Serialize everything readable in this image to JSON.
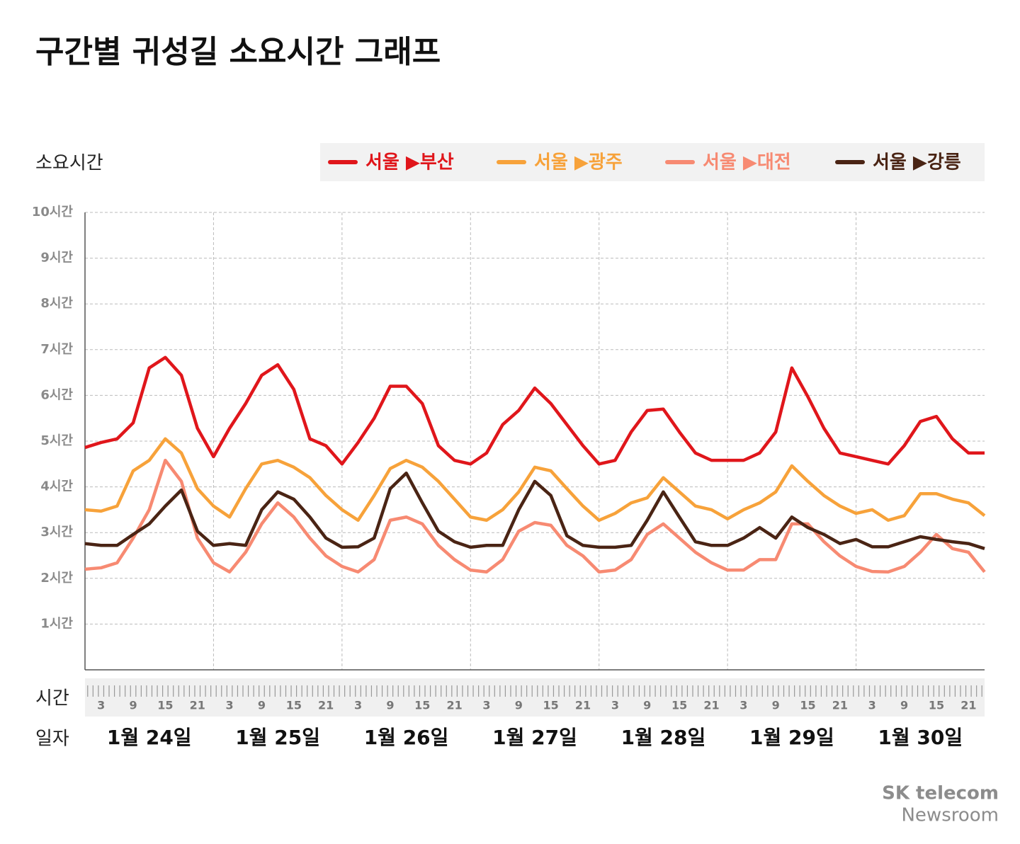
{
  "chart_data": {
    "type": "line",
    "title": "구간별 귀성길 소요시간 그래프",
    "y_label": "소요시간",
    "x_label_hour": "시간",
    "x_label_day": "일자",
    "brand": [
      "SK telecom",
      "Newsroom"
    ],
    "xlim": [
      0,
      168
    ],
    "ylim": [
      0,
      10
    ],
    "yticks": [
      {
        "value": 1,
        "label": "1시간"
      },
      {
        "value": 2,
        "label": "2시간"
      },
      {
        "value": 3,
        "label": "3시간"
      },
      {
        "value": 4,
        "label": "4시간"
      },
      {
        "value": 5,
        "label": "5시간"
      },
      {
        "value": 6,
        "label": "6시간"
      },
      {
        "value": 7,
        "label": "7시간"
      },
      {
        "value": 8,
        "label": "8시간"
      },
      {
        "value": 9,
        "label": "9시간"
      },
      {
        "value": 10,
        "label": "10시간"
      }
    ],
    "xticks": [
      3,
      9,
      15,
      21,
      {
        "value": 27,
        "label": "3"
      },
      {
        "value": 33,
        "label": "9"
      },
      {
        "value": 39,
        "label": "15"
      },
      {
        "value": 45,
        "label": "21"
      },
      {
        "value": 51,
        "label": "3"
      },
      {
        "value": 57,
        "label": "9"
      },
      {
        "value": 63,
        "label": "15"
      },
      {
        "value": 69,
        "label": "21"
      },
      {
        "value": 75,
        "label": "3"
      },
      {
        "value": 81,
        "label": "9"
      },
      {
        "value": 87,
        "label": "15"
      },
      {
        "value": 93,
        "label": "21"
      },
      {
        "value": 99,
        "label": "3"
      },
      {
        "value": 105,
        "label": "9"
      },
      {
        "value": 111,
        "label": "15"
      },
      {
        "value": 117,
        "label": "21"
      },
      {
        "value": 123,
        "label": "3"
      },
      {
        "value": 129,
        "label": "9"
      },
      {
        "value": 135,
        "label": "15"
      },
      {
        "value": 141,
        "label": "21"
      },
      {
        "value": 147,
        "label": "3"
      },
      {
        "value": 153,
        "label": "9"
      },
      {
        "value": 159,
        "label": "15"
      },
      {
        "value": 165,
        "label": "21"
      }
    ],
    "day_ticks": [
      {
        "value": 0,
        "label": "1월 24일"
      },
      {
        "value": 24,
        "label": "1월 25일"
      },
      {
        "value": 48,
        "label": "1월 26일"
      },
      {
        "value": 72,
        "label": "1월 27일"
      },
      {
        "value": 96,
        "label": "1월 28일"
      },
      {
        "value": 120,
        "label": "1월 29일"
      },
      {
        "value": 144,
        "label": "1월 30일"
      }
    ],
    "grid": true,
    "x": [
      0,
      3,
      6,
      9,
      12,
      15,
      18,
      21,
      24,
      27,
      30,
      33,
      36,
      39,
      42,
      45,
      48,
      51,
      54,
      57,
      60,
      63,
      66,
      69,
      72,
      75,
      78,
      81,
      84,
      87,
      90,
      93,
      96,
      99,
      102,
      105,
      108,
      111,
      114,
      117,
      120,
      123,
      126,
      129,
      132,
      135,
      138,
      141,
      144,
      147,
      150,
      153,
      156,
      159,
      162,
      165,
      168
    ],
    "series": [
      {
        "name": "서울 ▶부산",
        "color": "#e0161b",
        "values": [
          4.86,
          4.97,
          5.05,
          5.4,
          6.6,
          6.83,
          6.44,
          5.28,
          4.66,
          5.28,
          5.82,
          6.44,
          6.67,
          6.13,
          5.05,
          4.9,
          4.5,
          4.97,
          5.5,
          6.2,
          6.2,
          5.82,
          4.9,
          4.58,
          4.5,
          4.74,
          5.36,
          5.67,
          6.16,
          5.82,
          5.36,
          4.9,
          4.5,
          4.58,
          5.2,
          5.67,
          5.7,
          5.2,
          4.74,
          4.58,
          4.58,
          4.58,
          4.74,
          5.2,
          6.6,
          5.97,
          5.28,
          4.74,
          4.66,
          4.58,
          4.5,
          4.9,
          5.43,
          5.54,
          5.05,
          4.74,
          4.74
        ]
      },
      {
        "name": "서울 ▶광주",
        "color": "#f7a23a",
        "values": [
          3.5,
          3.47,
          3.58,
          4.35,
          4.58,
          5.05,
          4.74,
          3.96,
          3.58,
          3.34,
          3.96,
          4.5,
          4.58,
          4.43,
          4.2,
          3.81,
          3.5,
          3.27,
          3.81,
          4.4,
          4.58,
          4.43,
          4.12,
          3.73,
          3.34,
          3.27,
          3.5,
          3.89,
          4.43,
          4.35,
          3.96,
          3.58,
          3.27,
          3.42,
          3.65,
          3.76,
          4.2,
          3.89,
          3.58,
          3.5,
          3.3,
          3.5,
          3.65,
          3.89,
          4.46,
          4.12,
          3.81,
          3.58,
          3.42,
          3.5,
          3.27,
          3.37,
          3.85,
          3.85,
          3.73,
          3.65,
          3.37
        ]
      },
      {
        "name": "서울 ▶대전",
        "color": "#f78a72",
        "values": [
          2.2,
          2.23,
          2.34,
          2.88,
          3.5,
          4.58,
          4.12,
          2.88,
          2.34,
          2.14,
          2.57,
          3.19,
          3.65,
          3.34,
          2.88,
          2.49,
          2.26,
          2.14,
          2.41,
          3.27,
          3.34,
          3.19,
          2.72,
          2.41,
          2.18,
          2.14,
          2.41,
          3.03,
          3.22,
          3.16,
          2.72,
          2.49,
          2.14,
          2.18,
          2.41,
          2.96,
          3.19,
          2.88,
          2.57,
          2.34,
          2.18,
          2.18,
          2.41,
          2.41,
          3.19,
          3.19,
          2.8,
          2.49,
          2.26,
          2.15,
          2.14,
          2.26,
          2.57,
          2.96,
          2.65,
          2.57,
          2.14
        ]
      },
      {
        "name": "서울 ▶강릉",
        "color": "#4a2414",
        "values": [
          2.76,
          2.72,
          2.72,
          2.96,
          3.19,
          3.58,
          3.93,
          3.03,
          2.72,
          2.76,
          2.72,
          3.5,
          3.89,
          3.73,
          3.34,
          2.88,
          2.68,
          2.69,
          2.88,
          3.96,
          4.3,
          3.65,
          3.03,
          2.8,
          2.68,
          2.72,
          2.72,
          3.5,
          4.12,
          3.81,
          2.93,
          2.72,
          2.68,
          2.68,
          2.72,
          3.27,
          3.89,
          3.34,
          2.8,
          2.72,
          2.72,
          2.88,
          3.11,
          2.88,
          3.34,
          3.11,
          2.96,
          2.76,
          2.85,
          2.69,
          2.69,
          2.8,
          2.91,
          2.85,
          2.8,
          2.76,
          2.65
        ]
      }
    ]
  }
}
